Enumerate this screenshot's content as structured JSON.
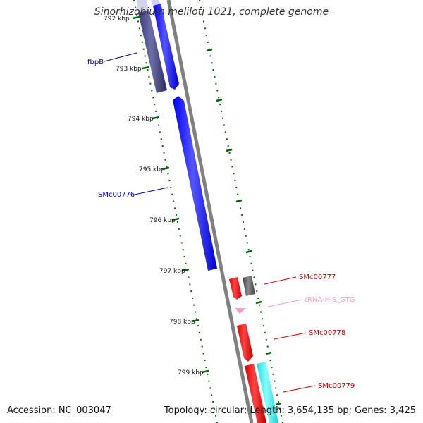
{
  "title": "Sinorhizobium meliloti 1021, complete genome",
  "footer": {
    "accession": "Accession: NC_003047",
    "topology": "Topology: circular; Length: 3,654,135 bp; Genes: 3,425"
  },
  "scale": {
    "ticks": [
      "792 kbp",
      "793 kbp",
      "794 kbp",
      "795 kbp",
      "796 kbp",
      "797 kbp",
      "798 kbp",
      "799 kbp"
    ]
  },
  "genes": [
    {
      "name": "fbpB",
      "color": "#000080"
    },
    {
      "name": "SMc00776",
      "color": "#0000CC"
    },
    {
      "name": "SMc00777",
      "color": "#CC0000"
    },
    {
      "name": "tRNA-HIS_GTG",
      "color": "#FF99CC"
    },
    {
      "name": "SMc00778",
      "color": "#CC0000"
    },
    {
      "name": "SMc00779",
      "color": "#CC0000"
    }
  ],
  "colors": {
    "forward_cds": "#0000FF",
    "reverse_cds": "#FF0000",
    "pseudo_or_other": "#5A5A8C",
    "gray_feature": "#666666",
    "cyan_feature": "#33FFFF",
    "trna": "#FF99CC",
    "backbone": "#808080",
    "tick_marks": "#006600"
  }
}
